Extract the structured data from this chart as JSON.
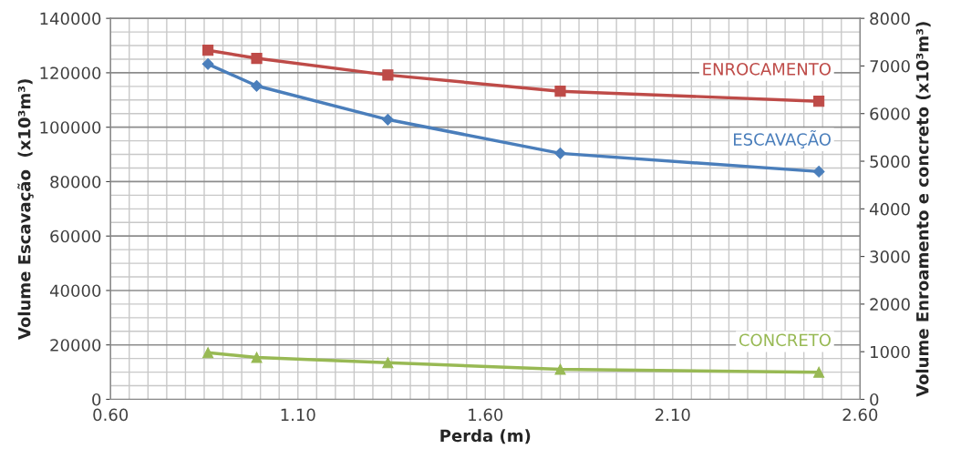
{
  "chart_data": {
    "type": "line",
    "xlabel": "Perda (m)",
    "ylabel": "Volume Escavação  (x10³m³)",
    "y2label": "Volume Enroamento e concreto (x10³m³)",
    "x": [
      0.86,
      0.99,
      1.34,
      1.8,
      2.49
    ],
    "series": [
      {
        "name": "ESCAVAÇÃO",
        "color": "#4a7ebb",
        "marker": "diamond",
        "values": [
          123200,
          115200,
          102800,
          90400,
          83700
        ]
      },
      {
        "name": "ENROCAMENTO",
        "color": "#be4b48",
        "marker": "square",
        "axis": "y2",
        "values": [
          7330,
          7160,
          6810,
          6470,
          6260
        ]
      },
      {
        "name": "CONCRETO",
        "color": "#98b954",
        "marker": "triangle",
        "axis": "y2",
        "values": [
          980,
          880,
          770,
          630,
          570
        ]
      }
    ],
    "xlim": [
      0.6,
      2.6
    ],
    "xticks": [
      {
        "value": 0.6,
        "label": "0.60"
      },
      {
        "value": 1.1,
        "label": "1.10"
      },
      {
        "value": 1.6,
        "label": "1.60"
      },
      {
        "value": 2.1,
        "label": "2.10"
      },
      {
        "value": 2.6,
        "label": "2.60"
      }
    ],
    "ylim": [
      0,
      140000
    ],
    "yticks": [
      0,
      20000,
      40000,
      60000,
      80000,
      100000,
      120000,
      140000
    ],
    "y2lim": [
      0,
      8000
    ],
    "y2ticks": [
      0,
      1000,
      2000,
      3000,
      4000,
      5000,
      6000,
      7000,
      8000
    ],
    "grid": true,
    "legend": false
  }
}
